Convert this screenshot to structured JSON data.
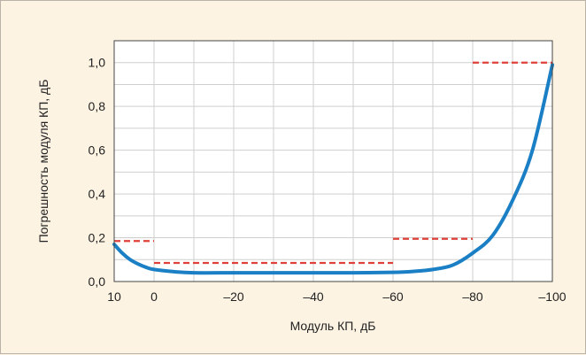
{
  "chart_data": {
    "type": "line",
    "title": "",
    "xlabel": "Модуль КП, дБ",
    "ylabel": "Погрешность модуля КП, дБ",
    "xlim": [
      10,
      -100
    ],
    "ylim": [
      0,
      1.1
    ],
    "grid": true,
    "x_ticks": [
      {
        "value": 10,
        "label": "10"
      },
      {
        "value": 0,
        "label": "0"
      },
      {
        "value": -20,
        "label": "–20"
      },
      {
        "value": -40,
        "label": "–40"
      },
      {
        "value": -60,
        "label": "–60"
      },
      {
        "value": -80,
        "label": "–80"
      },
      {
        "value": -100,
        "label": "–100"
      }
    ],
    "y_ticks": [
      {
        "value": 0,
        "label": "0,0"
      },
      {
        "value": 0.2,
        "label": "0,2"
      },
      {
        "value": 0.4,
        "label": "0,4"
      },
      {
        "value": 0.6,
        "label": "0,6"
      },
      {
        "value": 0.8,
        "label": "0,8"
      },
      {
        "value": 1.0,
        "label": "1,0"
      }
    ],
    "series": [
      {
        "kind": "curve",
        "color": "#1a7fc4",
        "x": [
          10,
          8,
          6,
          4,
          2,
          0,
          -5,
          -10,
          -20,
          -30,
          -40,
          -50,
          -60,
          -65,
          -70,
          -75,
          -80,
          -85,
          -90,
          -95,
          -100
        ],
        "y": [
          0.17,
          0.13,
          0.1,
          0.08,
          0.065,
          0.055,
          0.045,
          0.04,
          0.04,
          0.04,
          0.04,
          0.04,
          0.042,
          0.046,
          0.055,
          0.075,
          0.13,
          0.21,
          0.37,
          0.6,
          0.99
        ]
      },
      {
        "kind": "limit",
        "color": "#e0403a",
        "segments": [
          {
            "x": [
              10,
              0
            ],
            "y": 0.185
          },
          {
            "x": [
              0,
              -60
            ],
            "y": 0.085
          },
          {
            "x": [
              -60,
              -80
            ],
            "y": 0.195
          },
          {
            "x": [
              -80,
              -100
            ],
            "y": 1.0
          }
        ]
      }
    ]
  }
}
